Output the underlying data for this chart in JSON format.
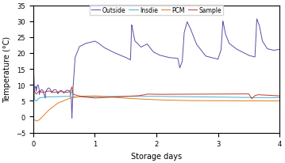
{
  "title": "",
  "xlabel": "Storage days",
  "ylabel": "Temperature (°C)",
  "xlim": [
    0,
    4
  ],
  "ylim": [
    -5,
    35
  ],
  "xticks": [
    0,
    1,
    2,
    3,
    4
  ],
  "yticks": [
    -5,
    0,
    5,
    10,
    15,
    20,
    25,
    30,
    35
  ],
  "legend": [
    "Outside",
    "Insdie",
    "PCM",
    "Sample"
  ],
  "colors": {
    "Outside": "#5B4EA8",
    "Insdie": "#4BACC6",
    "PCM": "#E07B20",
    "Sample": "#C0392B"
  },
  "background_color": "#FFFFFF",
  "figsize": [
    3.59,
    2.07
  ],
  "dpi": 100
}
